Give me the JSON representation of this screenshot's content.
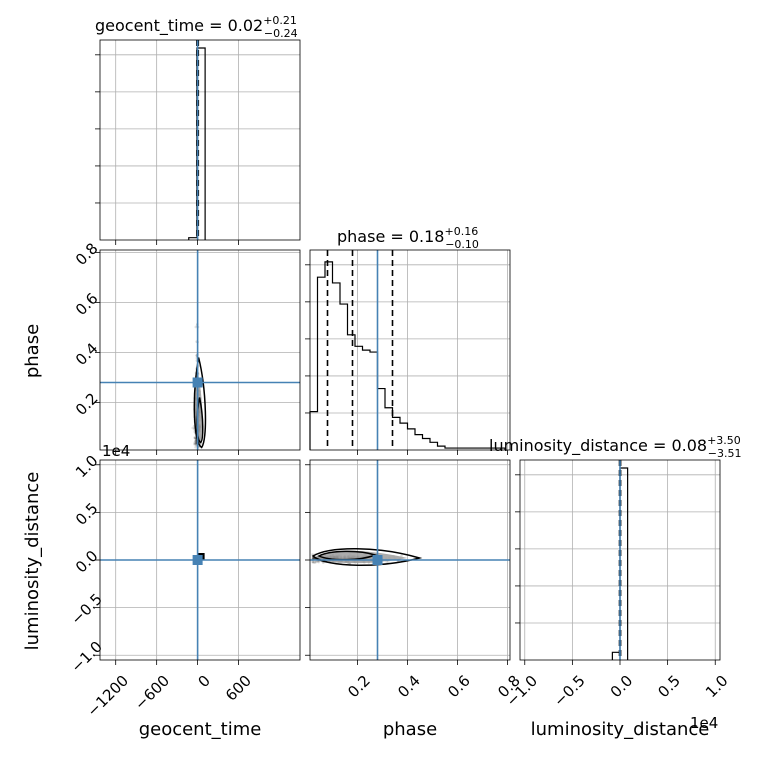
{
  "chart_data": {
    "type": "corner",
    "parameters": [
      "geocent_time",
      "phase",
      "luminosity_distance"
    ],
    "axis_labels": {
      "geocent_time": "geocent_time",
      "phase": "phase",
      "luminosity_distance": "luminosity_distance"
    },
    "truths": {
      "geocent_time": 0.0,
      "phase": 0.28,
      "luminosity_distance": 0.0
    },
    "titles": [
      {
        "param": "geocent_time",
        "name": "geocent_time",
        "value": "0.02",
        "plus": "+0.21",
        "minus": "−0.24"
      },
      {
        "param": "phase",
        "name": "phase",
        "value": "0.18",
        "plus": "+0.16",
        "minus": "−0.10"
      },
      {
        "param": "luminosity_distance",
        "name": "luminosity_distance",
        "value": "0.08",
        "plus": "+3.50",
        "minus": "−3.51"
      }
    ],
    "ranges": {
      "geocent_time": [
        -1430,
        1500
      ],
      "phase": [
        0.01,
        0.81
      ],
      "luminosity_distance": [
        -10500,
        10500
      ]
    },
    "scale_offsets": {
      "luminosity_distance": "1e4"
    },
    "ticks": {
      "geocent_time": [
        -1200,
        -600,
        0,
        600
      ],
      "geocent_time_labels": [
        "−1200",
        "−600",
        "0",
        "600"
      ],
      "phase": [
        0.2,
        0.4,
        0.6,
        0.8
      ],
      "phase_labels": [
        "0.2",
        "0.4",
        "0.6",
        "0.8"
      ],
      "luminosity_distance": [
        -10000,
        -5000,
        0,
        5000,
        10000
      ],
      "luminosity_distance_labels": [
        "−1.0",
        "−0.5",
        "0.0",
        "0.5",
        "1.0"
      ]
    },
    "histograms": {
      "geocent_time": {
        "bins": [
          -130,
          -10,
          110
        ],
        "counts": [
          0.012,
          1.0
        ]
      },
      "phase": {
        "bins": [
          0.01,
          0.04,
          0.07,
          0.1,
          0.13,
          0.16,
          0.19,
          0.22,
          0.25,
          0.28,
          0.31,
          0.34,
          0.37,
          0.4,
          0.43,
          0.46,
          0.49,
          0.52,
          0.55,
          0.58,
          0.61,
          0.64,
          0.67,
          0.7,
          0.73,
          0.76,
          0.79
        ],
        "counts": [
          0.2,
          0.9,
          0.98,
          0.87,
          0.76,
          0.6,
          0.54,
          0.52,
          0.51,
          0.32,
          0.22,
          0.17,
          0.14,
          0.11,
          0.08,
          0.06,
          0.04,
          0.02,
          0.01,
          0.01,
          0.01,
          0.01,
          0.01,
          0.01,
          0.01,
          0.01
        ]
      },
      "luminosity_distance": {
        "bins": [
          -800,
          0,
          800
        ],
        "counts": [
          0.04,
          1.0
        ]
      }
    },
    "quantile_lines": {
      "geocent_time": [
        -10,
        0,
        10
      ],
      "phase": [
        0.08,
        0.18,
        0.34
      ],
      "luminosity_distance": [
        -50,
        0,
        60
      ]
    },
    "grid": true
  }
}
